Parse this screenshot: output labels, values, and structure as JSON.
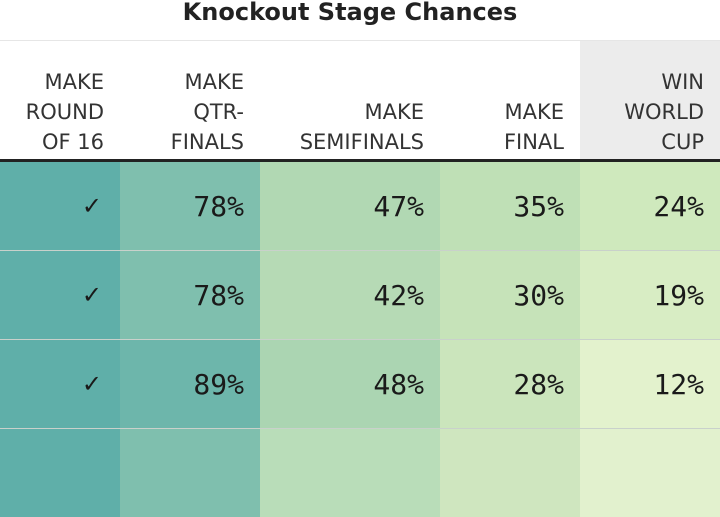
{
  "title": "Knockout Stage Chances",
  "headers": {
    "round16": "MAKE\nROUND\nOF 16",
    "qtr": "MAKE\nQTR-\nFINALS",
    "semi": "MAKE\nSEMIFINALS",
    "final": "MAKE\nFINAL",
    "win": "WIN\nWORLD\nCUP"
  },
  "rows": [
    {
      "round16": "✓",
      "qtr": "78%",
      "semi": "47%",
      "final": "35%",
      "win": "24%"
    },
    {
      "round16": "✓",
      "qtr": "78%",
      "semi": "42%",
      "final": "30%",
      "win": "19%"
    },
    {
      "round16": "✓",
      "qtr": "89%",
      "semi": "48%",
      "final": "28%",
      "win": "12%"
    }
  ],
  "colors": {
    "round16": "#5fafa9",
    "qtr": [
      "#7fbfae",
      "#7fbfae",
      "#6db6ab"
    ],
    "semi": [
      "#b1d8b3",
      "#b6dab5",
      "#abd5b2"
    ],
    "final": [
      "#bfe0b6",
      "#c6e3b9",
      "#cbe5bc"
    ],
    "win": [
      "#cfe9bd",
      "#d8edc4",
      "#e3f2cd"
    ],
    "partial_row": [
      "#5fafa9",
      "#7fbfae",
      "#b9ddb9",
      "#cfe6bf",
      "#e2f1ce"
    ]
  }
}
